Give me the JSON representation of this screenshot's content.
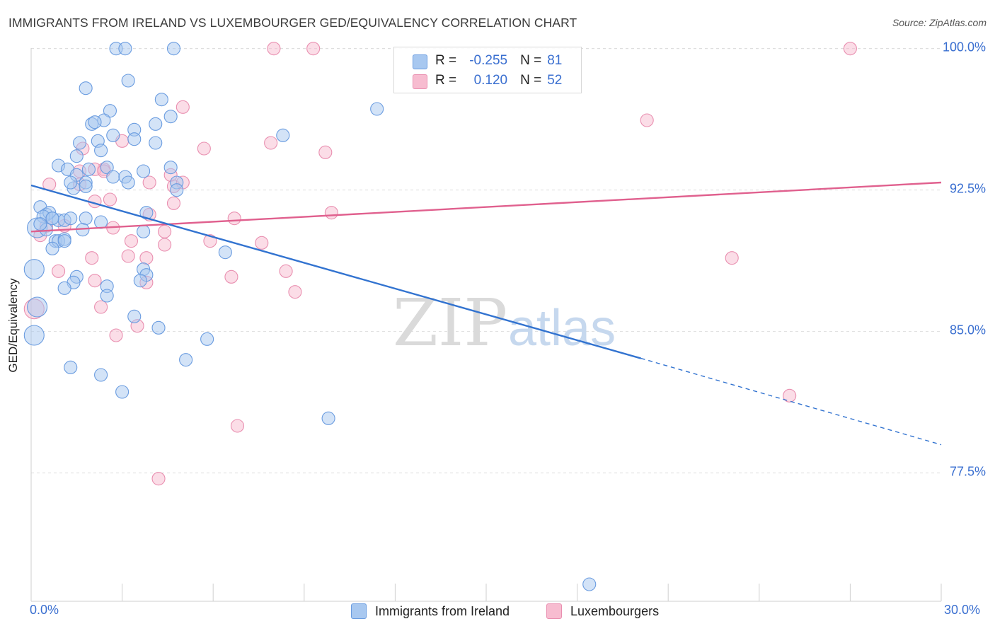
{
  "title": "IMMIGRANTS FROM IRELAND VS LUXEMBOURGER GED/EQUIVALENCY CORRELATION CHART",
  "source": "Source: ZipAtlas.com",
  "watermark": {
    "zip": "ZIP",
    "atlas": "atlas"
  },
  "legend": {
    "r_label": "R =",
    "n_label": "N =",
    "ireland": {
      "r": "-0.255",
      "n": "81"
    },
    "lux": {
      "r": "0.120",
      "n": "52"
    }
  },
  "colors": {
    "ireland_fill": "#a8c8f0",
    "ireland_stroke": "#6a9ce0",
    "ireland_line": "#3273d0",
    "lux_fill": "#f7bcd0",
    "lux_stroke": "#e98fb0",
    "lux_line": "#e0608e",
    "tick_label": "#3a6fd0",
    "grid": "#dddddd"
  },
  "chart_data": {
    "type": "scatter",
    "title": "IMMIGRANTS FROM IRELAND VS LUXEMBOURGER GED/EQUIVALENCY CORRELATION CHART",
    "xlabel": "",
    "ylabel": "GED/Equivalency",
    "xlim": [
      0,
      30
    ],
    "ylim": [
      70.7,
      101.0
    ],
    "x_tick_labels": [
      "0.0%",
      "30.0%"
    ],
    "y_ticks": [
      100.0,
      92.5,
      85.0,
      77.5
    ],
    "y_tick_labels": [
      "100.0%",
      "92.5%",
      "85.0%",
      "77.5%"
    ],
    "series": [
      {
        "name": "Immigrants from Ireland",
        "r": -0.255,
        "n": 81,
        "trend": {
          "x0": 0,
          "y0": 92.75,
          "x1": 20.1,
          "y1": 83.58,
          "dash_to_x": 30.0,
          "dash_to_y": 79.0
        },
        "points": [
          [
            2.8,
            100.0
          ],
          [
            3.1,
            100.0
          ],
          [
            4.7,
            100.0
          ],
          [
            1.8,
            97.9
          ],
          [
            3.2,
            98.3
          ],
          [
            4.3,
            97.3
          ],
          [
            11.4,
            96.8
          ],
          [
            2.6,
            96.7
          ],
          [
            2.4,
            96.2
          ],
          [
            4.6,
            96.4
          ],
          [
            2.0,
            96.0
          ],
          [
            2.1,
            96.1
          ],
          [
            3.4,
            95.7
          ],
          [
            4.1,
            96.0
          ],
          [
            8.3,
            95.4
          ],
          [
            2.7,
            95.4
          ],
          [
            2.2,
            95.1
          ],
          [
            1.6,
            95.0
          ],
          [
            3.4,
            95.2
          ],
          [
            4.1,
            95.0
          ],
          [
            2.3,
            94.6
          ],
          [
            1.5,
            94.3
          ],
          [
            0.9,
            93.8
          ],
          [
            1.2,
            93.6
          ],
          [
            1.9,
            93.6
          ],
          [
            2.5,
            93.7
          ],
          [
            3.7,
            93.5
          ],
          [
            4.6,
            93.7
          ],
          [
            1.5,
            93.3
          ],
          [
            2.7,
            93.2
          ],
          [
            3.1,
            93.2
          ],
          [
            1.8,
            92.9
          ],
          [
            3.2,
            92.9
          ],
          [
            4.8,
            92.9
          ],
          [
            1.4,
            92.6
          ],
          [
            1.8,
            92.7
          ],
          [
            4.8,
            92.5
          ],
          [
            0.3,
            91.6
          ],
          [
            0.5,
            91.2
          ],
          [
            0.6,
            91.3
          ],
          [
            0.4,
            91.1
          ],
          [
            0.7,
            91.0
          ],
          [
            0.9,
            90.9
          ],
          [
            1.1,
            90.9
          ],
          [
            1.3,
            91.0
          ],
          [
            1.8,
            91.0
          ],
          [
            2.3,
            90.8
          ],
          [
            3.8,
            91.3
          ],
          [
            0.2,
            90.5
          ],
          [
            0.5,
            90.4
          ],
          [
            1.7,
            90.4
          ],
          [
            3.7,
            90.3
          ],
          [
            0.8,
            89.8
          ],
          [
            0.9,
            89.8
          ],
          [
            1.1,
            89.9
          ],
          [
            1.1,
            89.8
          ],
          [
            6.4,
            89.2
          ],
          [
            0.7,
            89.4
          ],
          [
            0.1,
            88.3
          ],
          [
            3.7,
            88.3
          ],
          [
            3.8,
            88.0
          ],
          [
            1.5,
            87.9
          ],
          [
            1.4,
            87.6
          ],
          [
            3.6,
            87.7
          ],
          [
            2.5,
            87.4
          ],
          [
            1.1,
            87.3
          ],
          [
            2.5,
            86.9
          ],
          [
            0.2,
            86.3
          ],
          [
            3.4,
            85.8
          ],
          [
            4.2,
            85.2
          ],
          [
            0.1,
            84.8
          ],
          [
            5.8,
            84.6
          ],
          [
            5.1,
            83.5
          ],
          [
            1.3,
            83.1
          ],
          [
            2.3,
            82.7
          ],
          [
            3.0,
            81.8
          ],
          [
            9.8,
            80.4
          ],
          [
            18.4,
            71.6
          ],
          [
            0.3,
            90.7
          ],
          [
            0.7,
            91.0
          ],
          [
            1.3,
            92.9
          ]
        ]
      },
      {
        "name": "Luxembourgers",
        "r": 0.12,
        "n": 52,
        "trend": {
          "x0": 0,
          "y0": 90.3,
          "x1": 30.0,
          "y1": 92.9
        },
        "points": [
          [
            8.0,
            100.0
          ],
          [
            9.3,
            100.0
          ],
          [
            27.0,
            100.0
          ],
          [
            5.0,
            96.9
          ],
          [
            20.3,
            96.2
          ],
          [
            3.0,
            95.1
          ],
          [
            7.9,
            95.0
          ],
          [
            5.7,
            94.7
          ],
          [
            9.7,
            94.5
          ],
          [
            1.7,
            94.7
          ],
          [
            2.4,
            93.6
          ],
          [
            1.6,
            93.5
          ],
          [
            2.1,
            93.6
          ],
          [
            2.4,
            93.5
          ],
          [
            4.6,
            93.3
          ],
          [
            3.9,
            92.9
          ],
          [
            1.6,
            92.8
          ],
          [
            4.7,
            92.7
          ],
          [
            5.0,
            92.9
          ],
          [
            0.6,
            92.8
          ],
          [
            2.6,
            92.0
          ],
          [
            2.1,
            91.9
          ],
          [
            4.7,
            91.8
          ],
          [
            3.9,
            91.2
          ],
          [
            9.9,
            91.3
          ],
          [
            6.7,
            91.0
          ],
          [
            0.5,
            90.6
          ],
          [
            1.1,
            90.6
          ],
          [
            2.7,
            90.5
          ],
          [
            4.4,
            90.3
          ],
          [
            0.3,
            90.1
          ],
          [
            3.3,
            89.8
          ],
          [
            5.9,
            89.8
          ],
          [
            7.6,
            89.7
          ],
          [
            4.4,
            89.6
          ],
          [
            2.0,
            88.9
          ],
          [
            3.2,
            89.0
          ],
          [
            3.8,
            88.9
          ],
          [
            23.1,
            88.9
          ],
          [
            0.9,
            88.2
          ],
          [
            8.4,
            88.2
          ],
          [
            2.1,
            87.7
          ],
          [
            3.8,
            87.6
          ],
          [
            6.6,
            87.9
          ],
          [
            8.7,
            87.1
          ],
          [
            2.3,
            86.3
          ],
          [
            0.1,
            86.2
          ],
          [
            3.5,
            85.3
          ],
          [
            2.8,
            84.8
          ],
          [
            25.0,
            81.6
          ],
          [
            6.8,
            80.0
          ],
          [
            4.2,
            77.2
          ]
        ]
      }
    ]
  },
  "bottom_legend": [
    "Immigrants from Ireland",
    "Luxembourgers"
  ]
}
